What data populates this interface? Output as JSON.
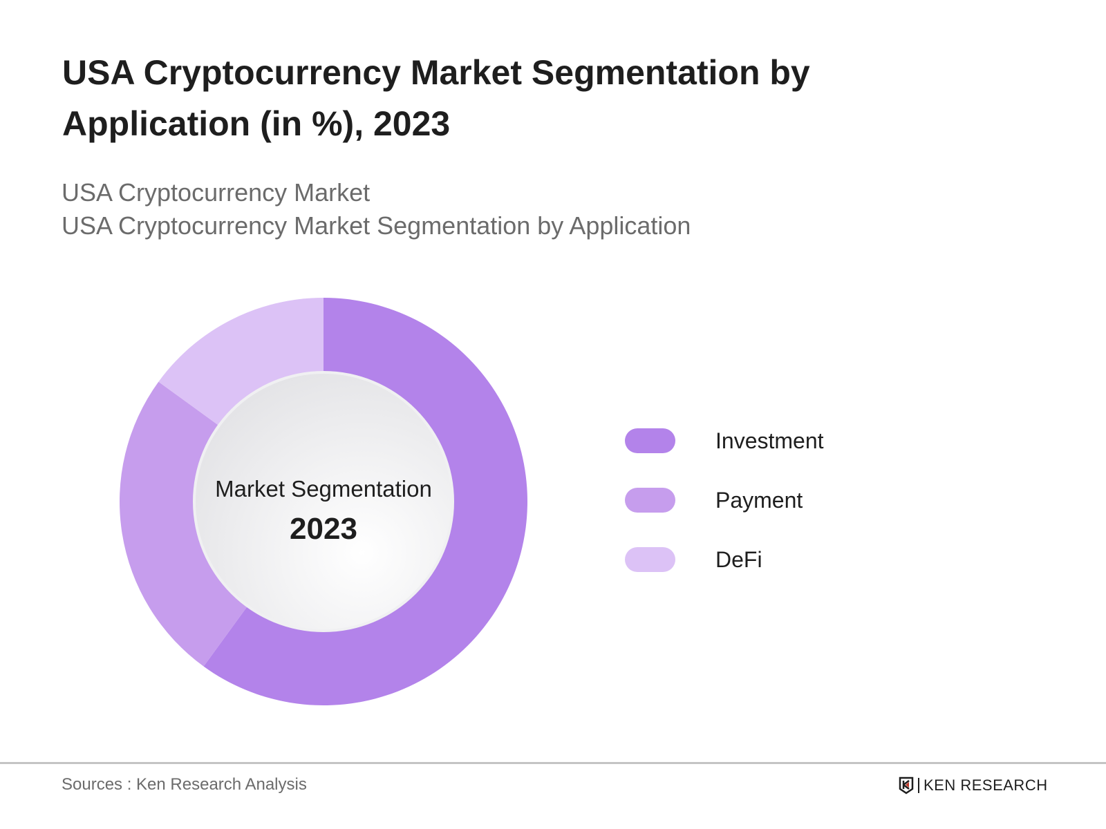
{
  "title": "USA Cryptocurrency Market Segmentation by Application (in %), 2023",
  "subtitle_1": "USA Cryptocurrency Market",
  "subtitle_2": "USA Cryptocurrency Market Segmentation by Application",
  "source": "Sources : Ken Research Analysis",
  "logo": "KEN RESEARCH",
  "chart_data": {
    "type": "pie",
    "variant": "donut",
    "title": "USA Cryptocurrency Market Segmentation by Application (in %), 2023",
    "center_label": "Market Segmentation",
    "center_value": "2023",
    "categories": [
      "Investment",
      "Payment",
      "DeFi"
    ],
    "values": [
      60,
      25,
      15
    ],
    "colors": [
      "#b383ea",
      "#c69ded",
      "#dcc2f6"
    ],
    "legend_position": "right"
  }
}
